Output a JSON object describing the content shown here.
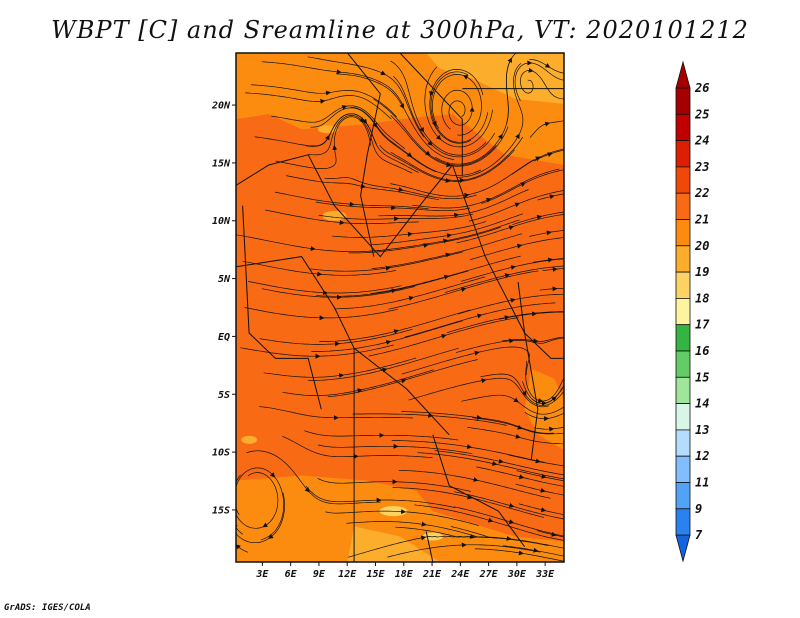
{
  "chart_data": {
    "type": "heatmap",
    "title": "WBPT [C] and Sreamline at 300hPa, VT: 2020101212",
    "variable": "Wet-bulb potential temperature (C) with streamlines at 300hPa",
    "valid_time": "2020101212",
    "x_ticks": [
      "3E",
      "6E",
      "9E",
      "12E",
      "15E",
      "18E",
      "21E",
      "24E",
      "27E",
      "30E",
      "33E"
    ],
    "x_tick_values": [
      3,
      6,
      9,
      12,
      15,
      18,
      21,
      24,
      27,
      30,
      33
    ],
    "y_ticks": [
      "20N",
      "15N",
      "10N",
      "5N",
      "EQ",
      "5S",
      "10S",
      "15S"
    ],
    "y_tick_values": [
      20,
      15,
      10,
      5,
      0,
      -5,
      -10,
      -15
    ],
    "xlim": [
      0.2,
      35
    ],
    "ylim": [
      -19.5,
      24.5
    ],
    "colorbar": {
      "levels": [
        "26",
        "25",
        "24",
        "23",
        "22",
        "21",
        "20",
        "19",
        "18",
        "17",
        "16",
        "15",
        "14",
        "13",
        "12",
        "11",
        "9",
        "7"
      ],
      "colors": [
        "#a50000",
        "#c00000",
        "#dd1e00",
        "#f04808",
        "#f86a14",
        "#fc8c10",
        "#fdad2c",
        "#fdd464",
        "#fdf4a0",
        "#34b440",
        "#64cc64",
        "#a0e69a",
        "#d8f6e8",
        "#b4dcfc",
        "#82beff",
        "#52a2f8",
        "#2a82f0",
        "#1464dc"
      ],
      "extend": "both"
    },
    "dominant_range": "21-23 C",
    "streamline_features": [
      "anticyclonic circulation near 25E 21N",
      "cyclonic eddy near 12E 18N",
      "westerly flow across equatorial Africa",
      "cyclonic circulation near 2E 16S",
      "eddy near 32E 7S"
    ]
  },
  "credit": "GrADS: IGES/COLA"
}
